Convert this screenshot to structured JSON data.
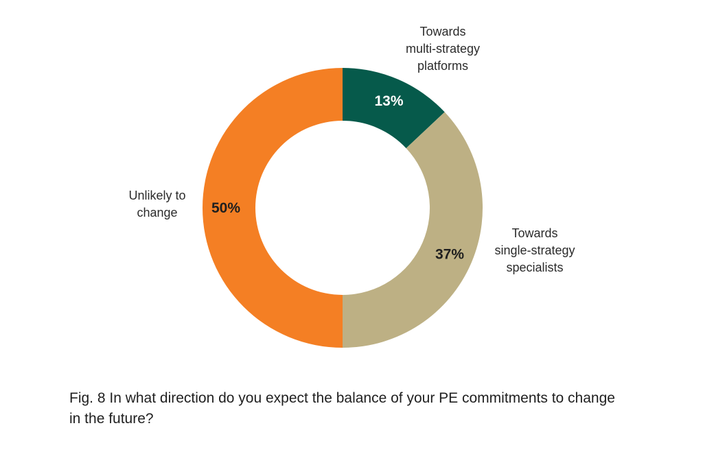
{
  "chart_data": {
    "type": "pie",
    "variant": "donut",
    "slices": [
      {
        "label_lines": [
          "Towards",
          "multi-strategy",
          "platforms"
        ],
        "value": 13,
        "value_label": "13%",
        "color": "#065a4b",
        "value_text_color": "#ffffff"
      },
      {
        "label_lines": [
          "Towards",
          "single-strategy",
          "specialists"
        ],
        "value": 37,
        "value_label": "37%",
        "color": "#bdb084",
        "value_text_color": "#1f1f1f"
      },
      {
        "label_lines": [
          "Unlikely to",
          "change"
        ],
        "value": 50,
        "value_label": "50%",
        "color": "#f47f24",
        "value_text_color": "#1f1f1f"
      }
    ]
  },
  "caption": "Fig. 8 In what direction do you expect the balance of your PE commitments to change in the future?"
}
